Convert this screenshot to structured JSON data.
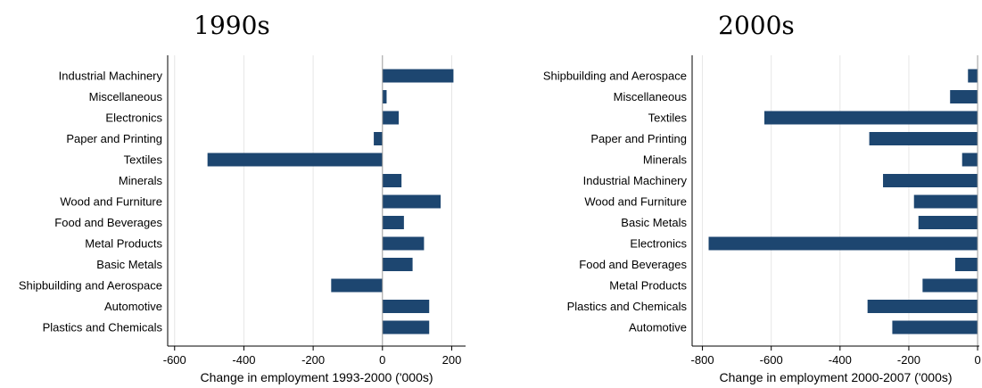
{
  "chart_data": [
    {
      "type": "bar",
      "orientation": "horizontal",
      "title": "1990s",
      "xlabel": "Change in employment 1993-2000 ('000s)",
      "ylabel": "",
      "xlim": [
        -620,
        240
      ],
      "xticks": [
        -600,
        -400,
        -200,
        0,
        200
      ],
      "grid": true,
      "bar_color": "#1d4670",
      "categories": [
        "Industrial Machinery",
        "Miscellaneous",
        "Electronics",
        "Paper and Printing",
        "Textiles",
        "Minerals",
        "Wood and Furniture",
        "Food and Beverages",
        "Metal Products",
        "Basic Metals",
        "Shipbuilding and Aerospace",
        "Automotive",
        "Plastics and Chemicals"
      ],
      "values": [
        205,
        12,
        47,
        -25,
        -505,
        55,
        168,
        62,
        120,
        87,
        -148,
        135,
        135
      ]
    },
    {
      "type": "bar",
      "orientation": "horizontal",
      "title": "2000s",
      "xlabel": "Change in employment 2000-2007 ('000s)",
      "ylabel": "",
      "xlim": [
        -830,
        5
      ],
      "xticks": [
        -800,
        -600,
        -400,
        -200,
        0
      ],
      "grid": true,
      "bar_color": "#1d4670",
      "categories": [
        "Shipbuilding and Aerospace",
        "Miscellaneous",
        "Textiles",
        "Paper and Printing",
        "Minerals",
        "Industrial Machinery",
        "Wood and Furniture",
        "Basic Metals",
        "Electronics",
        "Food and Beverages",
        "Metal Products",
        "Plastics and Chemicals",
        "Automotive"
      ],
      "values": [
        -28,
        -80,
        -620,
        -315,
        -45,
        -275,
        -185,
        -172,
        -782,
        -65,
        -160,
        -320,
        -248
      ]
    }
  ]
}
